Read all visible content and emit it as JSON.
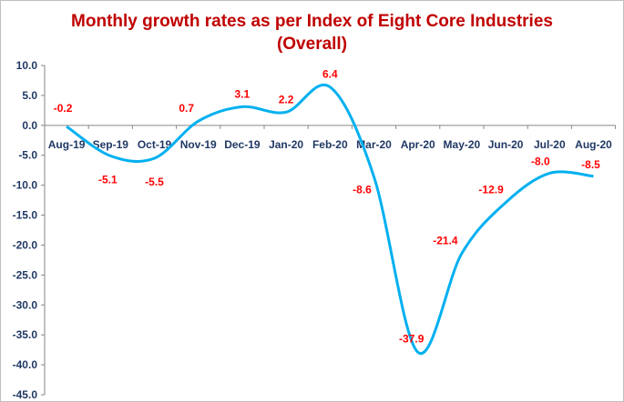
{
  "chart_data": {
    "type": "line",
    "title": "Monthly growth rates as per Index of Eight Core Industries",
    "subtitle": "(Overall)",
    "categories": [
      "Aug-19",
      "Sep-19",
      "Oct-19",
      "Nov-19",
      "Dec-19",
      "Jan-20",
      "Feb-20",
      "Mar-20",
      "Apr-20",
      "May-20",
      "Jun-20",
      "Jul-20",
      "Aug-20"
    ],
    "values": [
      -0.2,
      -5.1,
      -5.5,
      0.7,
      3.1,
      2.2,
      6.4,
      -8.6,
      -37.9,
      -21.4,
      -12.9,
      -8.0,
      -8.5
    ],
    "data_labels": [
      "-0.2",
      "-5.1",
      "-5.5",
      "0.7",
      "3.1",
      "2.2",
      "6.4",
      "-8.6",
      "-37.9",
      "-21.4",
      "-12.9",
      "-8.0",
      "-8.5"
    ],
    "yticks": [
      "10.0",
      "5.0",
      "0.0",
      "-5.0",
      "-10.0",
      "-15.0",
      "-20.0",
      "-25.0",
      "-30.0",
      "-35.0",
      "-40.0",
      "-45.0"
    ],
    "ylim": [
      -45,
      10
    ],
    "smooth": true,
    "grid": false,
    "legend": "none",
    "colors": {
      "line": "#00b0f0",
      "title": "#c00000",
      "labels": "#ff0000",
      "ticks": "#1f3864"
    }
  }
}
